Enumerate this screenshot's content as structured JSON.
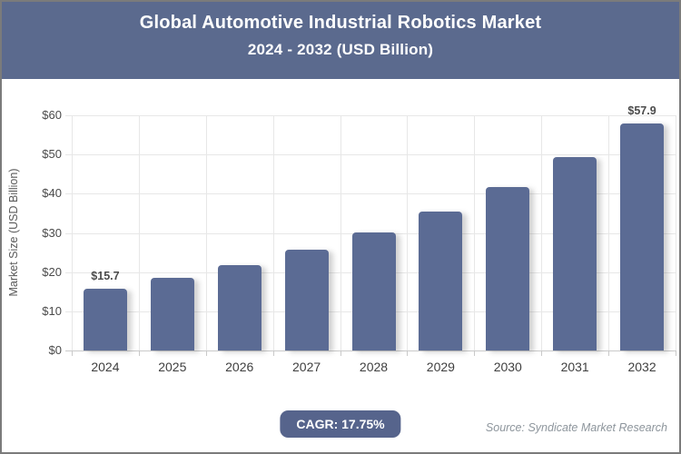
{
  "header": {
    "title": "Global Automotive Industrial Robotics Market",
    "subtitle": "2024 - 2032 (USD Billion)"
  },
  "chart_data": {
    "type": "bar",
    "title": "Global Automotive Industrial Robotics Market 2024 - 2032 (USD Billion)",
    "categories": [
      "2024",
      "2025",
      "2026",
      "2027",
      "2028",
      "2029",
      "2030",
      "2031",
      "2032"
    ],
    "values": [
      15.7,
      18.5,
      21.8,
      25.6,
      30.2,
      35.5,
      41.8,
      49.3,
      57.9
    ],
    "value_labels": [
      "$15.7",
      null,
      null,
      null,
      null,
      null,
      null,
      null,
      "$57.9"
    ],
    "xlabel": "",
    "ylabel": "Market Size (USD Billion)",
    "ylim": [
      0,
      60
    ],
    "yticks": [
      0,
      10,
      20,
      30,
      40,
      50,
      60
    ],
    "ytick_labels": [
      "$0",
      "$10",
      "$20",
      "$30",
      "$40",
      "$50",
      "$60"
    ],
    "grid": true,
    "legend": false
  },
  "footer": {
    "cagr_label": "CAGR: 17.75%",
    "source": "Source: Syndicate Market Research"
  },
  "colors": {
    "header_bg": "#5b6a8e",
    "bar": "#5b6b94",
    "badge_bg": "#56648c",
    "grid": "#e7e7e7",
    "axis": "#c9c9c9",
    "title_text": "#ffffff"
  }
}
